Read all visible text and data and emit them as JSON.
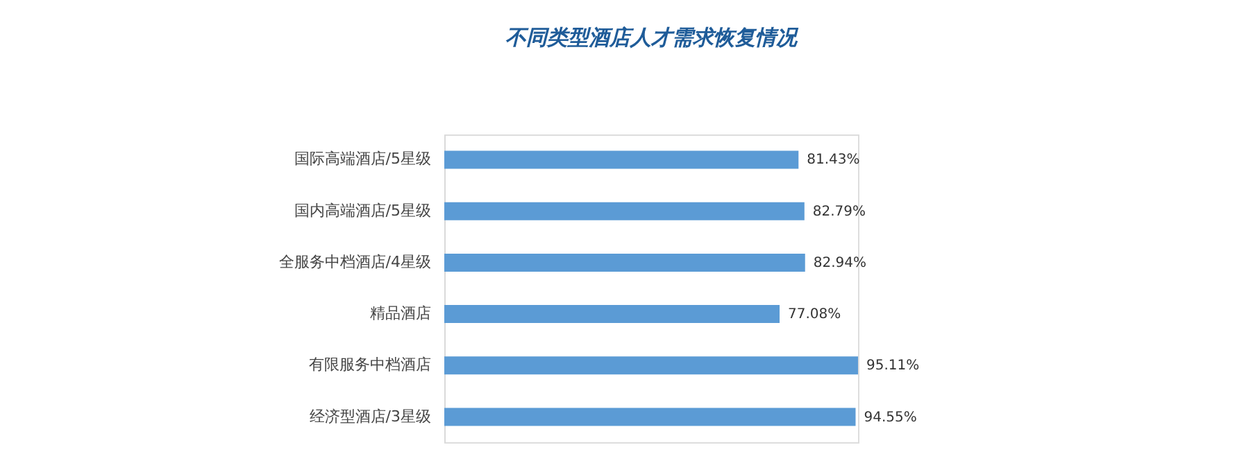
{
  "chart_data": {
    "type": "bar",
    "orientation": "horizontal",
    "title": "不同类型酒店人才需求恢复情况",
    "categories": [
      "国际高端酒店/5星级",
      "国内高端酒店/5星级",
      "全服务中档酒店/4星级",
      "精品酒店",
      "有限服务中档酒店",
      "经济型酒店/3星级"
    ],
    "values": [
      81.43,
      82.79,
      82.94,
      77.08,
      95.11,
      94.55
    ],
    "value_labels": [
      "81.43%",
      "82.79%",
      "82.94%",
      "77.08%",
      "95.11%",
      "94.55%"
    ],
    "color": "#5b9bd5",
    "grid": false
  }
}
